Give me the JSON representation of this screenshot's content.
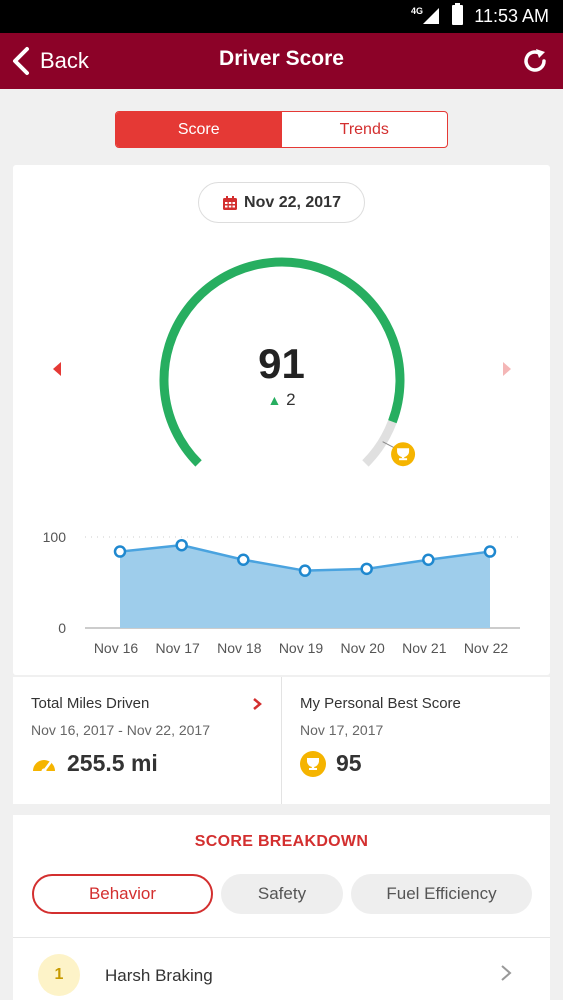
{
  "status": {
    "network": "4G",
    "time": "11:53 AM"
  },
  "appbar": {
    "back_label": "Back",
    "title": "Driver Score"
  },
  "tabs": [
    {
      "label": "Score",
      "active": true
    },
    {
      "label": "Trends",
      "active": false
    }
  ],
  "date": "Nov 22, 2017",
  "gauge": {
    "score": "91",
    "delta": "2",
    "best": 95,
    "max": 100
  },
  "chart_data": {
    "type": "area",
    "categories": [
      "Nov 16",
      "Nov 17",
      "Nov 18",
      "Nov 19",
      "Nov 20",
      "Nov 21",
      "Nov 22"
    ],
    "values": [
      84,
      91,
      75,
      63,
      65,
      75,
      84
    ],
    "yticks": [
      "100",
      "0"
    ],
    "ylim": [
      0,
      100
    ],
    "grid": false,
    "color": "#9ecdeb",
    "line_color": "#4aa3df"
  },
  "stats": {
    "miles": {
      "label": "Total Miles Driven",
      "range": "Nov 16, 2017 - Nov 22, 2017",
      "value": "255.5 mi"
    },
    "best": {
      "label": "My Personal Best Score",
      "date": "Nov 17, 2017",
      "value": "95"
    }
  },
  "breakdown": {
    "title": "SCORE BREAKDOWN",
    "tabs": [
      "Behavior",
      "Safety",
      "Fuel Efficiency"
    ],
    "items": [
      {
        "rank": "1",
        "label": "Harsh Braking"
      }
    ]
  },
  "colors": {
    "brand": "#8c0228",
    "accent": "#e53935",
    "gauge": "#27ae60",
    "gold": "#f5b400"
  }
}
